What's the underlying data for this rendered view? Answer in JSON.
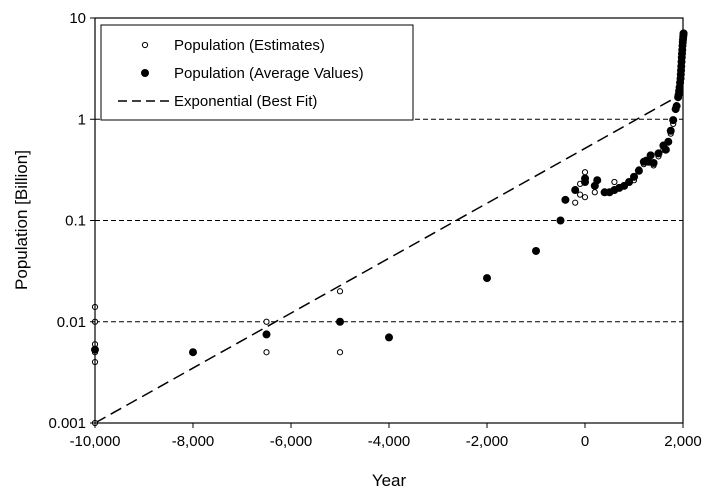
{
  "chart_data": {
    "type": "scatter",
    "xlabel": "Year",
    "ylabel": "Population [Billion]",
    "x_ticks": [
      -10000,
      -8000,
      -6000,
      -4000,
      -2000,
      0,
      2000
    ],
    "x_tick_labels": [
      "-10,000",
      "-8,000",
      "-6,000",
      "-4,000",
      "-2,000",
      "0",
      "2,000"
    ],
    "y_ticks": [
      0.001,
      0.01,
      0.1,
      1,
      10
    ],
    "y_tick_labels": [
      "0.001",
      "0.01",
      "0.1",
      "1",
      "10"
    ],
    "xlim": [
      -10000,
      2000
    ],
    "ylim": [
      0.001,
      10
    ],
    "y_scale": "log",
    "grid": "horizontal dashed at 0.01, 0.1 and 1",
    "legend_position": "top-left",
    "series": [
      {
        "name": "Population (Estimates)",
        "marker": "open-circle",
        "x": [
          -10000,
          -10000,
          -10000,
          -10000,
          -10000,
          -10000,
          -6500,
          -6500,
          -5000,
          -5000,
          -200,
          -100,
          -100,
          0,
          0,
          0,
          200,
          400,
          600,
          800,
          900,
          1000,
          1000,
          1100,
          1200,
          1300,
          1400,
          1500,
          1600,
          1700,
          1750,
          1800
        ],
        "y": [
          0.014,
          0.01,
          0.006,
          0.005,
          0.004,
          0.001,
          0.01,
          0.005,
          0.02,
          0.005,
          0.15,
          0.23,
          0.18,
          0.3,
          0.25,
          0.17,
          0.19,
          0.19,
          0.24,
          0.22,
          0.24,
          0.27,
          0.25,
          0.32,
          0.36,
          0.39,
          0.35,
          0.43,
          0.5,
          0.6,
          0.72,
          0.9
        ]
      },
      {
        "name": "Population (Average Values)",
        "marker": "filled-circle",
        "x": [
          -10000,
          -8000,
          -6500,
          -5000,
          -4000,
          -2000,
          -1000,
          -500,
          -400,
          -200,
          0,
          1,
          200,
          250,
          400,
          500,
          600,
          700,
          800,
          900,
          1000,
          1100,
          1200,
          1250,
          1300,
          1340,
          1400,
          1500,
          1600,
          1650,
          1700,
          1750,
          1800,
          1850,
          1870,
          1900,
          1910,
          1920,
          1930,
          1940,
          1950,
          1955,
          1960,
          1965,
          1970,
          1975,
          1980,
          1985,
          1990,
          1995,
          2000,
          2005,
          2010,
          2012
        ],
        "y": [
          0.0053,
          0.005,
          0.0075,
          0.01,
          0.007,
          0.027,
          0.05,
          0.1,
          0.16,
          0.2,
          0.24,
          0.26,
          0.22,
          0.25,
          0.19,
          0.19,
          0.2,
          0.21,
          0.22,
          0.24,
          0.27,
          0.31,
          0.38,
          0.39,
          0.38,
          0.44,
          0.37,
          0.46,
          0.55,
          0.5,
          0.6,
          0.77,
          0.98,
          1.26,
          1.35,
          1.65,
          1.75,
          1.9,
          2.07,
          2.3,
          2.52,
          2.77,
          3.03,
          3.34,
          3.7,
          4.08,
          4.45,
          4.86,
          5.33,
          5.76,
          6.13,
          6.51,
          6.9,
          7.05
        ]
      },
      {
        "name": "Exponential (Best Fit)",
        "marker": "dashed-line",
        "x": [
          -10000,
          2000
        ],
        "y": [
          0.001,
          1.8
        ]
      }
    ]
  }
}
